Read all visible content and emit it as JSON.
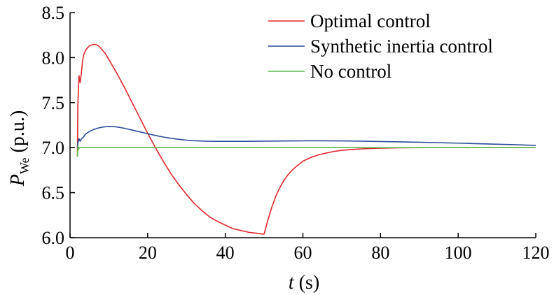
{
  "chart_data": {
    "type": "line",
    "xlabel": {
      "var": "t",
      "unit": " (s)"
    },
    "ylabel": {
      "var": "P",
      "sub": "We",
      "unit": " (p.u.)"
    },
    "xlim": [
      0,
      120
    ],
    "ylim": [
      6.0,
      8.5
    ],
    "xticks": [
      0,
      20,
      40,
      60,
      80,
      100,
      120
    ],
    "yticks": [
      6.0,
      6.5,
      7.0,
      7.5,
      8.0,
      8.5
    ],
    "xtick_labels": [
      "0",
      "20",
      "40",
      "60",
      "80",
      "100",
      "120"
    ],
    "ytick_labels": [
      "6.0",
      "6.5",
      "7.0",
      "7.5",
      "8.0",
      "8.5"
    ],
    "grid": false,
    "legend_position": "top-right",
    "series": [
      {
        "name": "Optimal control",
        "color": "#e0262b",
        "x": [
          1.9,
          2.0,
          2.3,
          2.6,
          2.9,
          3.2,
          3.5,
          4.0,
          4.5,
          5.0,
          5.5,
          6.0,
          6.5,
          7.0,
          7.5,
          8.0,
          9.0,
          10.0,
          12.0,
          14.0,
          16.0,
          18.0,
          20.0,
          22.0,
          24.0,
          26.0,
          28.0,
          30.0,
          32.0,
          34.0,
          36.0,
          38.0,
          40.0,
          42.0,
          44.0,
          46.0,
          48.0,
          49.5,
          50.0,
          51.0,
          52.0,
          53.0,
          54.0,
          55.0,
          56.0,
          57.0,
          58.0,
          60.0,
          62.0,
          64.0,
          66.0,
          68.0,
          70.0,
          72.0,
          75.0,
          80.0,
          85.0,
          90.0,
          95.0,
          100.0,
          110.0,
          120.0
        ],
        "y": [
          6.9,
          7.45,
          7.8,
          7.72,
          7.82,
          7.95,
          8.03,
          8.08,
          8.11,
          8.13,
          8.14,
          8.145,
          8.145,
          8.14,
          8.125,
          8.1,
          8.05,
          7.98,
          7.83,
          7.67,
          7.5,
          7.33,
          7.16,
          7.0,
          6.85,
          6.71,
          6.59,
          6.48,
          6.38,
          6.3,
          6.23,
          6.18,
          6.14,
          6.1,
          6.08,
          6.06,
          6.05,
          6.04,
          6.04,
          6.2,
          6.34,
          6.46,
          6.55,
          6.63,
          6.69,
          6.74,
          6.78,
          6.85,
          6.89,
          6.92,
          6.94,
          6.958,
          6.97,
          6.978,
          6.986,
          6.994,
          6.998,
          7.0,
          7.0,
          7.0,
          7.0,
          7.0
        ]
      },
      {
        "name": "Synthetic inertia control",
        "color": "#2b4c9a",
        "x": [
          1.9,
          2.0,
          2.3,
          2.6,
          3.0,
          3.5,
          4.0,
          5.0,
          6.0,
          7.0,
          8.0,
          9.0,
          10.0,
          11.0,
          12.0,
          14.0,
          16.0,
          18.0,
          20.0,
          22.0,
          24.0,
          26.0,
          28.0,
          30.0,
          32.0,
          35.0,
          38.0,
          40.0,
          45.0,
          50.0,
          55.0,
          60.0,
          65.0,
          70.0,
          75.0,
          80.0,
          85.0,
          90.0,
          95.0,
          100.0,
          105.0,
          110.0,
          115.0,
          120.0
        ],
        "y": [
          7.0,
          7.05,
          7.1,
          7.07,
          7.1,
          7.12,
          7.15,
          7.18,
          7.2,
          7.215,
          7.225,
          7.232,
          7.235,
          7.234,
          7.23,
          7.215,
          7.195,
          7.175,
          7.155,
          7.135,
          7.118,
          7.104,
          7.092,
          7.083,
          7.077,
          7.072,
          7.07,
          7.07,
          7.07,
          7.072,
          7.074,
          7.076,
          7.076,
          7.075,
          7.072,
          7.068,
          7.064,
          7.06,
          7.055,
          7.05,
          7.044,
          7.038,
          7.032,
          7.025
        ]
      },
      {
        "name": "No control",
        "color": "#5fb84a",
        "x": [
          1.9,
          2.05,
          2.2,
          2.4,
          5.0,
          120.0
        ],
        "y": [
          6.9,
          7.02,
          6.98,
          7.0,
          7.0,
          7.0
        ]
      }
    ]
  }
}
